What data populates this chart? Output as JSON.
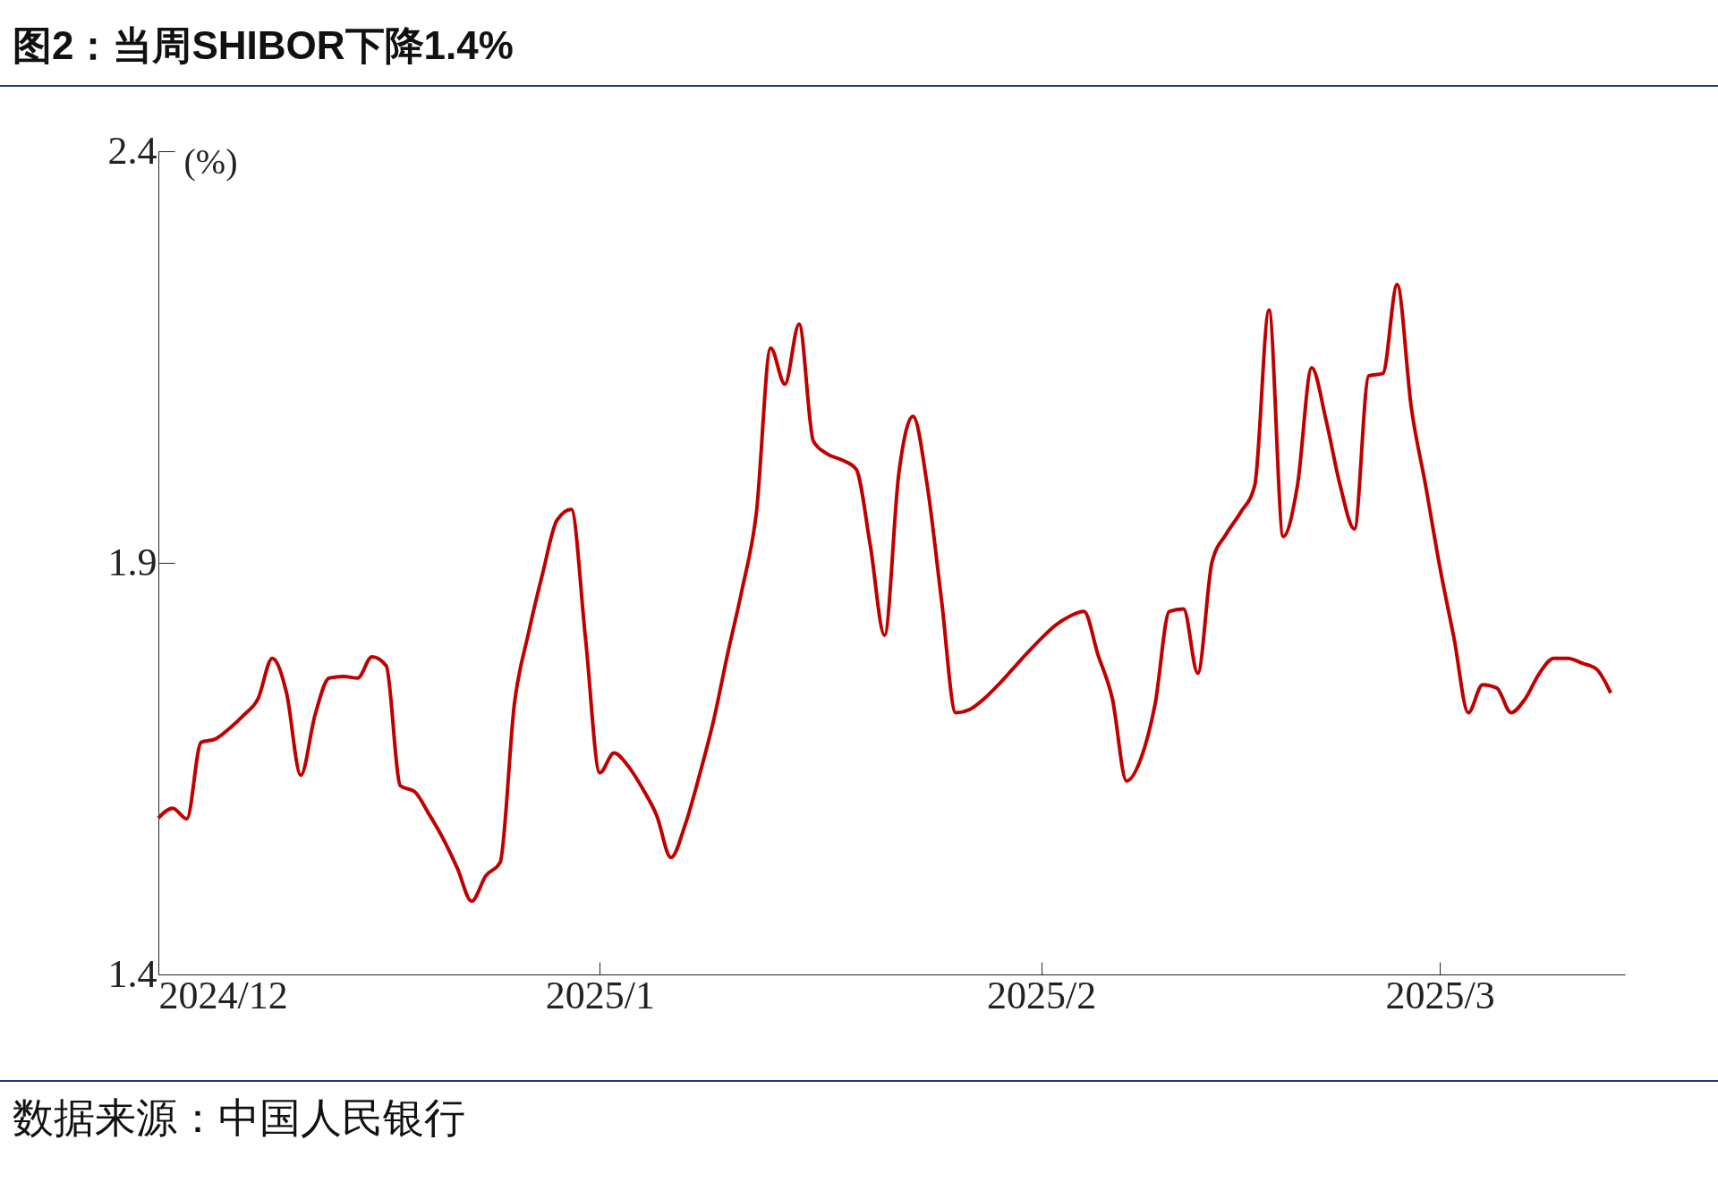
{
  "chart_data": {
    "type": "line",
    "title": "图2：当周SHIBOR下降1.4%",
    "ylabel": "(%)",
    "annotations": [
      "数据来源：中国人民银行"
    ],
    "x": [
      "2024-12-01",
      "2024-12-02",
      "2024-12-03",
      "2024-12-04",
      "2024-12-05",
      "2024-12-06",
      "2024-12-07",
      "2024-12-08",
      "2024-12-09",
      "2024-12-10",
      "2024-12-11",
      "2024-12-12",
      "2024-12-13",
      "2024-12-14",
      "2024-12-15",
      "2024-12-16",
      "2024-12-17",
      "2024-12-18",
      "2024-12-19",
      "2024-12-20",
      "2024-12-21",
      "2024-12-22",
      "2024-12-23",
      "2024-12-24",
      "2024-12-25",
      "2024-12-26",
      "2024-12-27",
      "2024-12-28",
      "2024-12-29",
      "2024-12-30",
      "2024-12-31",
      "2025-01-01",
      "2025-01-02",
      "2025-01-03",
      "2025-01-04",
      "2025-01-05",
      "2025-01-06",
      "2025-01-07",
      "2025-01-08",
      "2025-01-09",
      "2025-01-10",
      "2025-01-11",
      "2025-01-12",
      "2025-01-13",
      "2025-01-14",
      "2025-01-15",
      "2025-01-16",
      "2025-01-17",
      "2025-01-18",
      "2025-01-19",
      "2025-01-20",
      "2025-01-21",
      "2025-01-22",
      "2025-01-23",
      "2025-01-24",
      "2025-01-25",
      "2025-01-26",
      "2025-01-27",
      "2025-01-28",
      "2025-01-29",
      "2025-01-30",
      "2025-01-31",
      "2025-02-01",
      "2025-02-02",
      "2025-02-03",
      "2025-02-04",
      "2025-02-05",
      "2025-02-06",
      "2025-02-07",
      "2025-02-08",
      "2025-02-09",
      "2025-02-10",
      "2025-02-11",
      "2025-02-12",
      "2025-02-13",
      "2025-02-14",
      "2025-02-15",
      "2025-02-16",
      "2025-02-17",
      "2025-02-18",
      "2025-02-19",
      "2025-02-20",
      "2025-02-21",
      "2025-02-22",
      "2025-02-23",
      "2025-02-24",
      "2025-02-25",
      "2025-02-26",
      "2025-02-27",
      "2025-02-28",
      "2025-03-01",
      "2025-03-02",
      "2025-03-03",
      "2025-03-04",
      "2025-03-05",
      "2025-03-06",
      "2025-03-07",
      "2025-03-08",
      "2025-03-09",
      "2025-03-10",
      "2025-03-11",
      "2025-03-12",
      "2025-03-13"
    ],
    "series": [
      {
        "color": "#c00000",
        "values": [
          1.59,
          1.602,
          1.589,
          1.682,
          1.686,
          1.699,
          1.715,
          1.735,
          1.784,
          1.742,
          1.642,
          1.715,
          1.76,
          1.762,
          1.76,
          1.786,
          1.775,
          1.629,
          1.622,
          1.595,
          1.565,
          1.529,
          1.489,
          1.52,
          1.536,
          1.728,
          1.815,
          1.888,
          1.952,
          1.965,
          1.808,
          1.645,
          1.669,
          1.653,
          1.626,
          1.593,
          1.542,
          1.582,
          1.642,
          1.709,
          1.791,
          1.868,
          1.961,
          2.161,
          2.117,
          2.19,
          2.048,
          2.032,
          2.025,
          2.014,
          1.921,
          1.812,
          2.008,
          2.078,
          1.994,
          1.855,
          1.718,
          1.722,
          1.735,
          1.752,
          1.771,
          1.79,
          1.808,
          1.824,
          1.835,
          1.841,
          1.788,
          1.735,
          1.635,
          1.662,
          1.728,
          1.841,
          1.844,
          1.766,
          1.901,
          1.935,
          1.961,
          1.994,
          2.207,
          1.932,
          1.994,
          2.137,
          2.074,
          1.994,
          1.941,
          2.127,
          2.13,
          2.238,
          2.088,
          1.994,
          1.895,
          1.808,
          1.718,
          1.752,
          1.748,
          1.718,
          1.735,
          1.766,
          1.784,
          1.784,
          1.778,
          1.771,
          1.742
        ]
      }
    ],
    "xlim": [
      "2024-12-01",
      "2025-03-14"
    ],
    "xticks": [
      {
        "value": "2024-12-01",
        "label": "2024/12"
      },
      {
        "value": "2025-01-01",
        "label": "2025/1"
      },
      {
        "value": "2025-02-01",
        "label": "2025/2"
      },
      {
        "value": "2025-03-01",
        "label": "2025/3"
      }
    ],
    "ylim": [
      1.4,
      2.4
    ],
    "yticks": [
      1.4,
      1.9,
      2.4
    ],
    "grid": false
  }
}
